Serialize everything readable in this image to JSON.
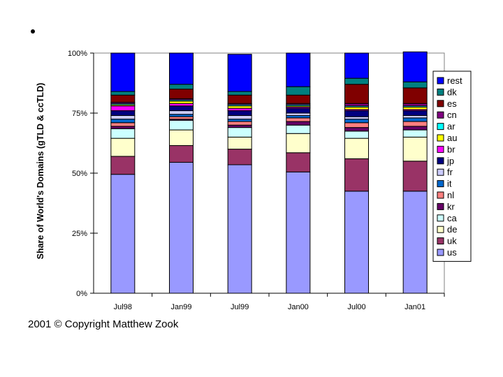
{
  "copyright": "2001 © Copyright Matthew Zook",
  "chart_data": {
    "type": "bar",
    "stacked": true,
    "title": "",
    "xlabel": "",
    "ylabel": "Share of World's Domains (gTLD & ccTLD)",
    "ylim": [
      0,
      100
    ],
    "yticks": [
      "0%",
      "25%",
      "50%",
      "75%",
      "100%"
    ],
    "legend_position": "right",
    "categories": [
      "Jul98",
      "Jan99",
      "Jul99",
      "Jan00",
      "Jul00",
      "Jan01"
    ],
    "series": [
      {
        "name": "us",
        "color": "#9999ff",
        "values": [
          49.5,
          54.5,
          53.5,
          50.5,
          42.5,
          42.5
        ]
      },
      {
        "name": "uk",
        "color": "#993366",
        "values": [
          7.5,
          7.0,
          6.5,
          8.0,
          13.5,
          12.5
        ]
      },
      {
        "name": "de",
        "color": "#ffffcc",
        "values": [
          7.5,
          6.5,
          5.0,
          8.0,
          8.5,
          10.0
        ]
      },
      {
        "name": "ca",
        "color": "#ccffff",
        "values": [
          4.0,
          4.0,
          4.0,
          3.5,
          3.0,
          3.0
        ]
      },
      {
        "name": "kr",
        "color": "#660066",
        "values": [
          1.0,
          0.5,
          1.0,
          1.5,
          1.5,
          1.5
        ]
      },
      {
        "name": "nl",
        "color": "#ff8080",
        "values": [
          1.5,
          1.0,
          1.5,
          1.5,
          2.0,
          2.0
        ]
      },
      {
        "name": "it",
        "color": "#0066cc",
        "values": [
          1.5,
          1.0,
          1.0,
          1.0,
          1.5,
          1.5
        ]
      },
      {
        "name": "fr",
        "color": "#ccccff",
        "values": [
          1.5,
          1.5,
          1.5,
          1.0,
          1.0,
          1.0
        ]
      },
      {
        "name": "jp",
        "color": "#000080",
        "values": [
          2.0,
          2.0,
          2.0,
          2.0,
          2.5,
          2.0
        ]
      },
      {
        "name": "br",
        "color": "#ff00ff",
        "values": [
          2.0,
          1.0,
          1.0,
          0.5,
          0.5,
          0.5
        ]
      },
      {
        "name": "au",
        "color": "#ffff00",
        "values": [
          0.5,
          1.0,
          1.0,
          0.5,
          1.0,
          1.0
        ]
      },
      {
        "name": "ar",
        "color": "#00ffff",
        "values": [
          0.5,
          0.5,
          0.5,
          0.5,
          0.5,
          0.5
        ]
      },
      {
        "name": "cn",
        "color": "#800080",
        "values": [
          0.5,
          0.5,
          0.5,
          0.5,
          1.0,
          1.0
        ]
      },
      {
        "name": "es",
        "color": "#800000",
        "values": [
          3.0,
          4.0,
          3.5,
          3.5,
          8.0,
          6.5
        ]
      },
      {
        "name": "dk",
        "color": "#008080",
        "values": [
          1.5,
          2.0,
          1.5,
          3.5,
          2.5,
          2.5
        ]
      },
      {
        "name": "rest",
        "color": "#0000ff",
        "values": [
          16.0,
          13.0,
          15.5,
          14.0,
          10.5,
          12.5
        ]
      }
    ]
  }
}
